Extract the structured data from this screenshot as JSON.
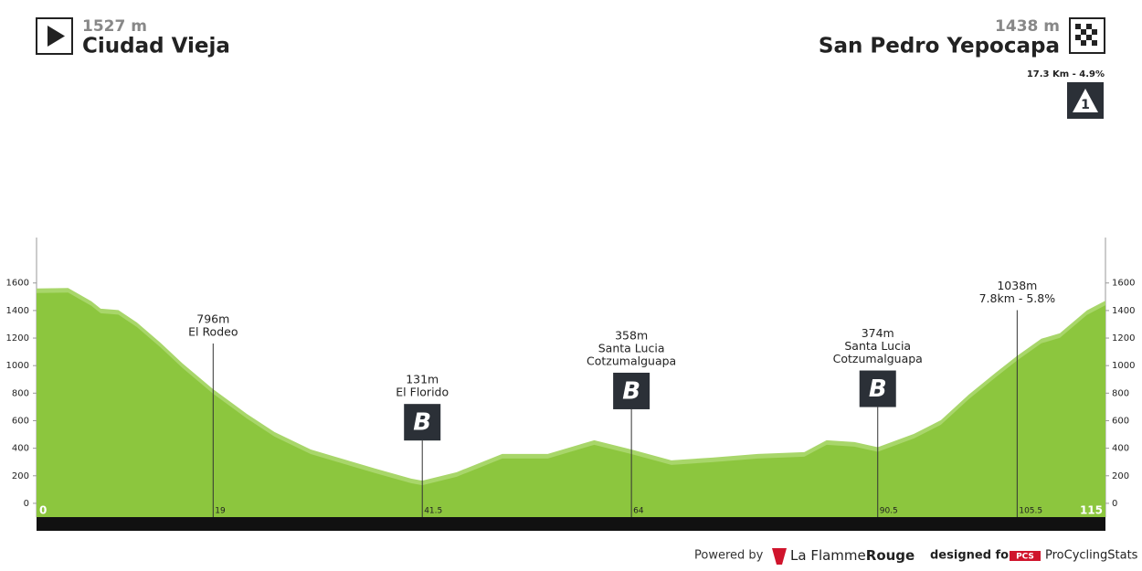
{
  "header": {
    "start": {
      "elevation": "1527 m",
      "name": "Ciudad Vieja"
    },
    "finish": {
      "elevation": "1438 m",
      "name": "San Pedro Yepocapa"
    },
    "climb": {
      "text": "17.3 Km - 4.9%",
      "icon": "1"
    }
  },
  "chart_data": {
    "type": "area",
    "color": "#8cc63e",
    "highlight_color": "#a8d66a",
    "x": [
      0,
      3.4,
      5.9,
      6.9,
      8.8,
      10.8,
      13.3,
      15.7,
      19,
      22.6,
      25.6,
      29.5,
      32.4,
      36.4,
      40.3,
      41.5,
      45.2,
      50.1,
      55,
      60,
      64,
      68.3,
      72.7,
      77.6,
      82.6,
      85,
      88,
      90.5,
      94.4,
      97.3,
      100.3,
      103.2,
      105.5,
      108.1,
      110.1,
      113,
      115
    ],
    "values": [
      1527,
      1530,
      1434,
      1380,
      1370,
      1280,
      1135,
      983,
      796,
      617,
      485,
      358,
      300,
      220,
      146,
      131,
      193,
      325,
      325,
      425,
      358,
      279,
      299,
      325,
      339,
      425,
      412,
      374,
      471,
      571,
      757,
      916,
      1038,
      1162,
      1202,
      1368,
      1438
    ],
    "xlim": [
      0,
      115
    ],
    "xticks": [
      0,
      19,
      41.5,
      64,
      90.5,
      105.5,
      115
    ],
    "ylim": [
      -100,
      1930
    ],
    "yticks": [
      0,
      200,
      400,
      600,
      800,
      1000,
      1200,
      1400,
      1600
    ],
    "markers": [
      {
        "km": 19,
        "label_lines": [
          "796m",
          "El Rodeo"
        ]
      },
      {
        "km": 41.5,
        "label_lines": [
          "131m",
          "El Florido"
        ],
        "icon": "B"
      },
      {
        "km": 64,
        "label_lines": [
          "358m",
          "Santa Lucia",
          "Cotzumalguapa"
        ],
        "icon": "B"
      },
      {
        "km": 90.5,
        "label_lines": [
          "374m",
          "Santa Lucia",
          "Cotzumalguapa"
        ],
        "icon": "B"
      },
      {
        "km": 105.5,
        "label_lines": [
          "1038m",
          "7.8km - 5.8%"
        ]
      }
    ]
  },
  "footer": {
    "powered": "Powered by",
    "brand_a": "La Flamme",
    "brand_b": "Rouge",
    "designed": "designed for",
    "pcs": "PCS",
    "pcs_name": "ProCyclingStats"
  }
}
